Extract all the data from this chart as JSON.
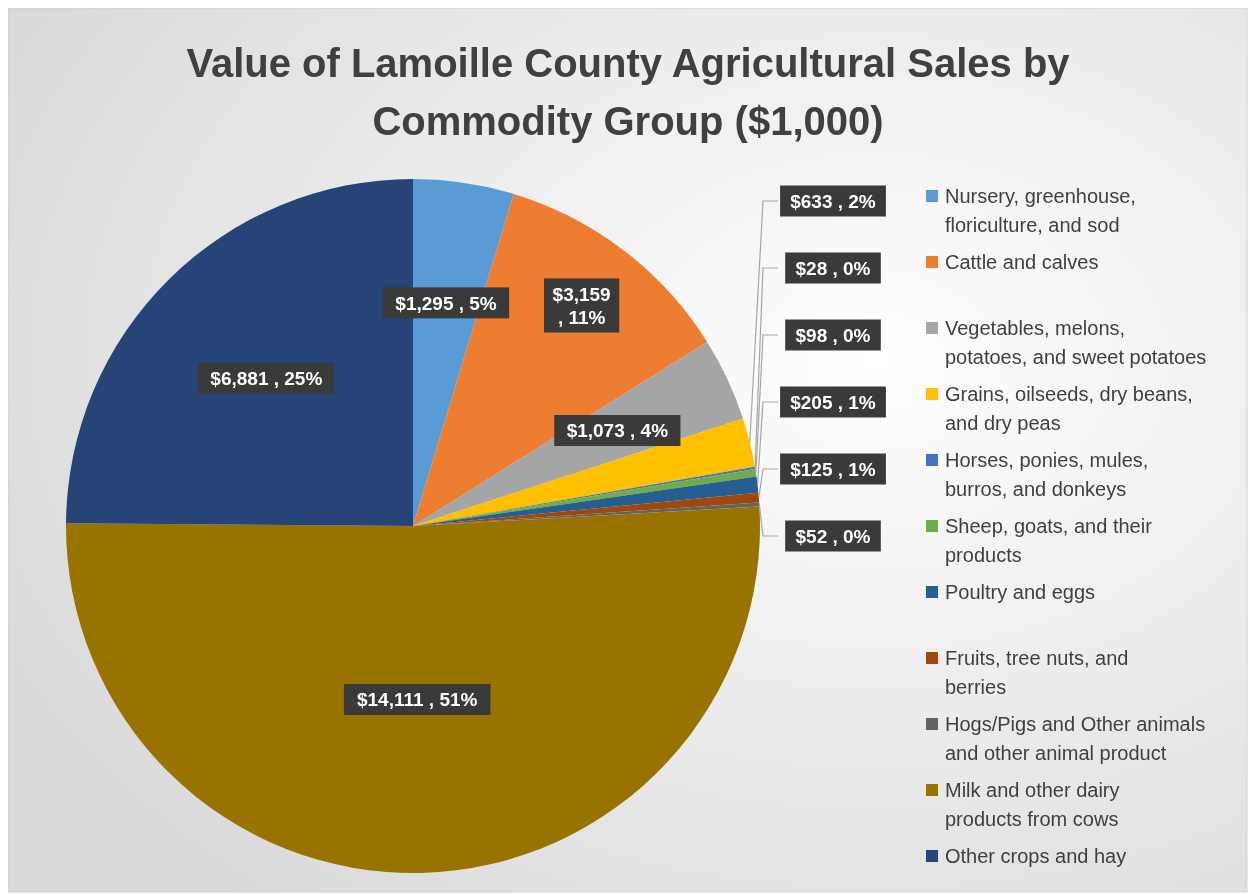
{
  "chart_data": {
    "type": "pie",
    "title": "Value of Lamoille County Agricultural Sales by Commodity Group ($1,000)",
    "categories": [
      "Nursery, greenhouse, floriculture, and sod",
      "Cattle and calves",
      "Vegetables, melons, potatoes, and sweet potatoes",
      "Grains, oilseeds, dry beans, and dry peas",
      "Horses, ponies, mules, burros, and donkeys",
      "Sheep, goats, and their products",
      "Poultry and eggs",
      "Fruits, tree nuts, and berries",
      "Hogs/Pigs and Other animals and other animal product",
      "Milk and other dairy products from cows",
      "Other crops and hay"
    ],
    "values": [
      1295,
      3159,
      1073,
      633,
      28,
      98,
      205,
      125,
      52,
      14111,
      6881
    ],
    "value_labels": [
      "$1,295 , 5%",
      "$3,159 , 11%",
      "$1,073 , 4%",
      "$633 , 2%",
      "$28 , 0%",
      "$98 , 0%",
      "$205 , 1%",
      "$125 , 1%",
      "$52 , 0%",
      "$14,111 , 51%",
      "$6,881 , 25%"
    ],
    "colors": [
      "#5b9bd5",
      "#ed7d31",
      "#a5a5a5",
      "#ffc000",
      "#4472c4",
      "#70ad47",
      "#255e91",
      "#9e480e",
      "#636363",
      "#997300",
      "#264478"
    ],
    "legend": "right"
  }
}
